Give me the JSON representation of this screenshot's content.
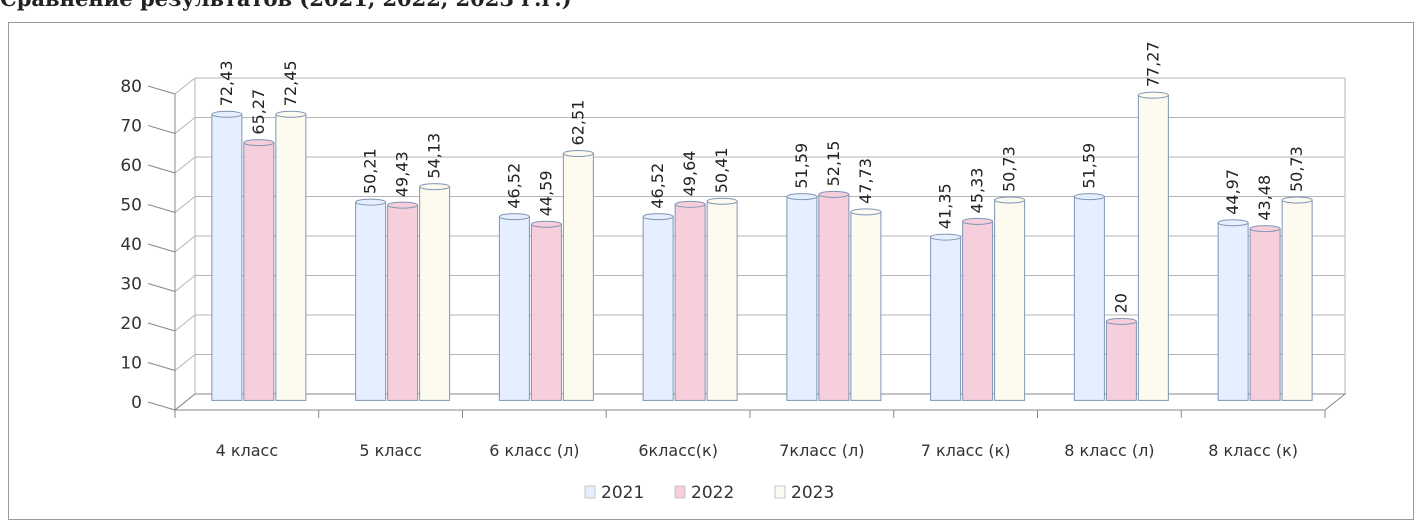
{
  "caption": "Сравнение результатов (2021, 2022, 2023 г.г.)",
  "chart_data": {
    "type": "bar",
    "title": "",
    "xlabel": "",
    "ylabel": "",
    "ylim": [
      0,
      80
    ],
    "yticks": [
      "0",
      "10",
      "20",
      "30",
      "40",
      "50",
      "60",
      "70",
      "80"
    ],
    "grid": true,
    "legend_position": "bottom",
    "categories": [
      "4 класс",
      "5 класс",
      "6 класс (л)",
      "6класс(к)",
      "7класс (л)",
      "7 класс (к)",
      "8 класс (л)",
      "8 класс (к)"
    ],
    "series": [
      {
        "name": "2021",
        "color": "#e6efff",
        "values": [
          72.43,
          50.21,
          46.52,
          46.52,
          51.59,
          41.35,
          51.59,
          44.97
        ],
        "labels": [
          "72,43",
          "50,21",
          "46,52",
          "46,52",
          "51,59",
          "41,35",
          "51,59",
          "44,97"
        ]
      },
      {
        "name": "2022",
        "color": "#f7cfdc",
        "values": [
          65.27,
          49.43,
          44.59,
          49.64,
          52.15,
          45.33,
          20,
          43.48
        ],
        "labels": [
          "65,27",
          "49,43",
          "44,59",
          "49,64",
          "52,15",
          "45,33",
          "20",
          "43,48"
        ]
      },
      {
        "name": "2023",
        "color": "#fdfaf0",
        "values": [
          72.45,
          54.13,
          62.51,
          50.41,
          47.73,
          50.73,
          77.27,
          50.73
        ],
        "labels": [
          "72,45",
          "54,13",
          "62,51",
          "50,41",
          "47,73",
          "50,73",
          "77,27",
          "50,73"
        ]
      }
    ]
  }
}
